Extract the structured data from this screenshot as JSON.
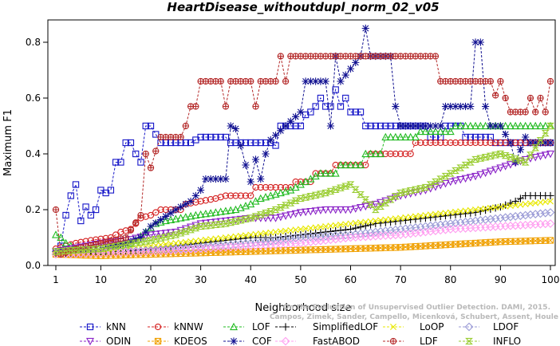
{
  "chart_data": {
    "type": "line",
    "title": "HeartDisease_withoutdupl_norm_02_v05",
    "xlabel": "Neighborhood size",
    "ylabel": "Maximum F1",
    "xlim": [
      1,
      100
    ],
    "ylim": [
      0,
      0.88
    ],
    "x_ticks": [
      1,
      10,
      20,
      30,
      40,
      50,
      60,
      70,
      80,
      90,
      100
    ],
    "y_ticks": [
      0.0,
      0.2,
      0.4,
      0.6,
      0.8
    ],
    "y_tick_labels": [
      "0.0",
      "0.2",
      "0.4",
      "0.6",
      "0.8"
    ],
    "legend_position": "bottom",
    "credit": "Campos, Zimek, Sander, Campello, Micenková, Schubert, Assent, Houle: On the Evaluation of Unsupervised Outlier Detection. DAMI, 2015.",
    "credit_lines": [
      "Campos, Zimek, Sander, Campello, Micenková, Schubert, Assent, Houle",
      "On the Evaluation of Unsupervised Outlier Detection. DAMI, 2015."
    ],
    "series": [
      {
        "name": "kNN",
        "color": "#1515c8",
        "marker": "square",
        "points": [
          [
            1,
            0.05
          ],
          [
            2,
            0.07
          ],
          [
            3,
            0.18
          ],
          [
            4,
            0.25
          ],
          [
            5,
            0.29
          ],
          [
            6,
            0.16
          ],
          [
            7,
            0.21
          ],
          [
            8,
            0.18
          ],
          [
            9,
            0.2
          ],
          [
            10,
            0.27
          ],
          [
            11,
            0.26
          ],
          [
            12,
            0.27
          ],
          [
            13,
            0.37
          ],
          [
            14,
            0.37
          ],
          [
            15,
            0.44
          ],
          [
            16,
            0.44
          ],
          [
            17,
            0.4
          ],
          [
            18,
            0.37
          ],
          [
            19,
            0.5
          ],
          [
            20,
            0.5
          ],
          [
            22,
            0.44
          ],
          [
            28,
            0.44
          ],
          [
            30,
            0.46
          ],
          [
            35,
            0.46
          ],
          [
            36,
            0.44
          ],
          [
            44,
            0.44
          ],
          [
            45,
            0.43
          ],
          [
            46,
            0.5
          ],
          [
            50,
            0.5
          ],
          [
            51,
            0.54
          ],
          [
            52,
            0.55
          ],
          [
            53,
            0.57
          ],
          [
            54,
            0.6
          ],
          [
            55,
            0.57
          ],
          [
            56,
            0.57
          ],
          [
            57,
            0.63
          ],
          [
            58,
            0.57
          ],
          [
            59,
            0.6
          ],
          [
            60,
            0.55
          ],
          [
            62,
            0.55
          ],
          [
            63,
            0.5
          ],
          [
            75,
            0.5
          ],
          [
            76,
            0.46
          ],
          [
            78,
            0.46
          ],
          [
            79,
            0.5
          ],
          [
            82,
            0.5
          ],
          [
            83,
            0.46
          ],
          [
            88,
            0.46
          ],
          [
            89,
            0.44
          ],
          [
            100,
            0.44
          ]
        ]
      },
      {
        "name": "kNNW",
        "color": "#d42020",
        "marker": "circle",
        "points": [
          [
            1,
            0.06
          ],
          [
            3,
            0.07
          ],
          [
            5,
            0.08
          ],
          [
            8,
            0.09
          ],
          [
            12,
            0.1
          ],
          [
            14,
            0.12
          ],
          [
            16,
            0.13
          ],
          [
            18,
            0.17
          ],
          [
            20,
            0.18
          ],
          [
            22,
            0.2
          ],
          [
            26,
            0.2
          ],
          [
            27,
            0.22
          ],
          [
            30,
            0.23
          ],
          [
            33,
            0.24
          ],
          [
            35,
            0.25
          ],
          [
            40,
            0.25
          ],
          [
            41,
            0.28
          ],
          [
            48,
            0.28
          ],
          [
            49,
            0.3
          ],
          [
            52,
            0.3
          ],
          [
            53,
            0.33
          ],
          [
            56,
            0.33
          ],
          [
            57,
            0.36
          ],
          [
            63,
            0.36
          ],
          [
            64,
            0.4
          ],
          [
            72,
            0.4
          ],
          [
            73,
            0.44
          ],
          [
            100,
            0.44
          ]
        ]
      },
      {
        "name": "LOF",
        "color": "#22bb22",
        "marker": "triangle",
        "points": [
          [
            1,
            0.11
          ],
          [
            2,
            0.1
          ],
          [
            3,
            0.08
          ],
          [
            5,
            0.06
          ],
          [
            8,
            0.05
          ],
          [
            10,
            0.05
          ],
          [
            13,
            0.06
          ],
          [
            15,
            0.07
          ],
          [
            17,
            0.09
          ],
          [
            19,
            0.12
          ],
          [
            21,
            0.15
          ],
          [
            23,
            0.16
          ],
          [
            26,
            0.17
          ],
          [
            29,
            0.18
          ],
          [
            33,
            0.19
          ],
          [
            37,
            0.2
          ],
          [
            40,
            0.22
          ],
          [
            42,
            0.24
          ],
          [
            44,
            0.25
          ],
          [
            48,
            0.27
          ],
          [
            50,
            0.29
          ],
          [
            52,
            0.31
          ],
          [
            54,
            0.33
          ],
          [
            57,
            0.33
          ],
          [
            58,
            0.36
          ],
          [
            62,
            0.36
          ],
          [
            63,
            0.4
          ],
          [
            66,
            0.4
          ],
          [
            67,
            0.46
          ],
          [
            73,
            0.46
          ],
          [
            74,
            0.48
          ],
          [
            80,
            0.48
          ],
          [
            81,
            0.5
          ],
          [
            100,
            0.5
          ]
        ]
      },
      {
        "name": "SimplifiedLOF",
        "color": "#000000",
        "marker": "plus",
        "points": [
          [
            1,
            0.04
          ],
          [
            5,
            0.04
          ],
          [
            10,
            0.045
          ],
          [
            15,
            0.05
          ],
          [
            20,
            0.06
          ],
          [
            25,
            0.07
          ],
          [
            30,
            0.08
          ],
          [
            35,
            0.09
          ],
          [
            40,
            0.1
          ],
          [
            45,
            0.1
          ],
          [
            50,
            0.11
          ],
          [
            55,
            0.12
          ],
          [
            60,
            0.13
          ],
          [
            65,
            0.15
          ],
          [
            70,
            0.16
          ],
          [
            75,
            0.17
          ],
          [
            80,
            0.18
          ],
          [
            85,
            0.19
          ],
          [
            90,
            0.21
          ],
          [
            93,
            0.23
          ],
          [
            95,
            0.25
          ],
          [
            100,
            0.25
          ]
        ]
      },
      {
        "name": "LoOP",
        "color": "#e8e800",
        "marker": "x",
        "points": [
          [
            1,
            0.04
          ],
          [
            10,
            0.05
          ],
          [
            20,
            0.07
          ],
          [
            30,
            0.09
          ],
          [
            40,
            0.11
          ],
          [
            50,
            0.13
          ],
          [
            60,
            0.15
          ],
          [
            70,
            0.17
          ],
          [
            80,
            0.19
          ],
          [
            90,
            0.21
          ],
          [
            100,
            0.23
          ]
        ]
      },
      {
        "name": "LDOF",
        "color": "#9a9ad6",
        "marker": "diamond",
        "points": [
          [
            1,
            0.04
          ],
          [
            10,
            0.045
          ],
          [
            20,
            0.055
          ],
          [
            30,
            0.065
          ],
          [
            40,
            0.08
          ],
          [
            50,
            0.1
          ],
          [
            60,
            0.11
          ],
          [
            70,
            0.13
          ],
          [
            80,
            0.15
          ],
          [
            90,
            0.17
          ],
          [
            100,
            0.19
          ]
        ]
      },
      {
        "name": "ODIN",
        "color": "#8b24c8",
        "marker": "triangle-down",
        "points": [
          [
            1,
            0.05
          ],
          [
            10,
            0.08
          ],
          [
            15,
            0.09
          ],
          [
            20,
            0.11
          ],
          [
            25,
            0.12
          ],
          [
            30,
            0.15
          ],
          [
            35,
            0.16
          ],
          [
            40,
            0.17
          ],
          [
            45,
            0.17
          ],
          [
            50,
            0.19
          ],
          [
            55,
            0.2
          ],
          [
            60,
            0.2
          ],
          [
            65,
            0.22
          ],
          [
            70,
            0.25
          ],
          [
            75,
            0.27
          ],
          [
            80,
            0.3
          ],
          [
            85,
            0.32
          ],
          [
            90,
            0.35
          ],
          [
            95,
            0.38
          ],
          [
            100,
            0.4
          ]
        ]
      },
      {
        "name": "KDEOS",
        "color": "#f0a000",
        "marker": "square-x",
        "points": [
          [
            1,
            0.04
          ],
          [
            10,
            0.035
          ],
          [
            20,
            0.04
          ],
          [
            30,
            0.045
          ],
          [
            40,
            0.05
          ],
          [
            50,
            0.055
          ],
          [
            60,
            0.06
          ],
          [
            70,
            0.065
          ],
          [
            80,
            0.075
          ],
          [
            90,
            0.085
          ],
          [
            100,
            0.09
          ]
        ]
      },
      {
        "name": "COF",
        "color": "#101090",
        "marker": "star",
        "points": [
          [
            1,
            0.05
          ],
          [
            10,
            0.06
          ],
          [
            15,
            0.08
          ],
          [
            18,
            0.1
          ],
          [
            20,
            0.14
          ],
          [
            25,
            0.2
          ],
          [
            28,
            0.23
          ],
          [
            30,
            0.27
          ],
          [
            31,
            0.31
          ],
          [
            35,
            0.31
          ],
          [
            36,
            0.5
          ],
          [
            37,
            0.49
          ],
          [
            38,
            0.43
          ],
          [
            39,
            0.36
          ],
          [
            40,
            0.3
          ],
          [
            41,
            0.38
          ],
          [
            42,
            0.31
          ],
          [
            43,
            0.4
          ],
          [
            44,
            0.45
          ],
          [
            47,
            0.5
          ],
          [
            50,
            0.55
          ],
          [
            51,
            0.66
          ],
          [
            55,
            0.66
          ],
          [
            56,
            0.5
          ],
          [
            57,
            0.75
          ],
          [
            58,
            0.66
          ],
          [
            62,
            0.75
          ],
          [
            63,
            0.85
          ],
          [
            64,
            0.75
          ],
          [
            68,
            0.75
          ],
          [
            69,
            0.57
          ],
          [
            70,
            0.5
          ],
          [
            78,
            0.5
          ],
          [
            79,
            0.57
          ],
          [
            84,
            0.57
          ],
          [
            85,
            0.8
          ],
          [
            86,
            0.8
          ],
          [
            87,
            0.57
          ],
          [
            88,
            0.5
          ],
          [
            90,
            0.5
          ],
          [
            92,
            0.44
          ],
          [
            93,
            0.37
          ],
          [
            95,
            0.46
          ],
          [
            96,
            0.44
          ],
          [
            100,
            0.44
          ]
        ]
      },
      {
        "name": "FastABOD",
        "color": "#ff9cf0",
        "marker": "diamond",
        "points": [
          [
            1,
            0.04
          ],
          [
            10,
            0.045
          ],
          [
            20,
            0.05
          ],
          [
            30,
            0.06
          ],
          [
            40,
            0.07
          ],
          [
            50,
            0.08
          ],
          [
            60,
            0.1
          ],
          [
            70,
            0.11
          ],
          [
            80,
            0.13
          ],
          [
            90,
            0.14
          ],
          [
            100,
            0.15
          ]
        ]
      },
      {
        "name": "LDF",
        "color": "#b42828",
        "marker": "circle-plus",
        "points": [
          [
            1,
            0.2
          ],
          [
            2,
            0.04
          ],
          [
            5,
            0.06
          ],
          [
            10,
            0.08
          ],
          [
            15,
            0.1
          ],
          [
            18,
            0.18
          ],
          [
            19,
            0.4
          ],
          [
            20,
            0.35
          ],
          [
            21,
            0.41
          ],
          [
            22,
            0.46
          ],
          [
            26,
            0.46
          ],
          [
            27,
            0.5
          ],
          [
            28,
            0.57
          ],
          [
            29,
            0.57
          ],
          [
            30,
            0.66
          ],
          [
            34,
            0.66
          ],
          [
            35,
            0.57
          ],
          [
            36,
            0.66
          ],
          [
            40,
            0.66
          ],
          [
            41,
            0.57
          ],
          [
            42,
            0.66
          ],
          [
            45,
            0.66
          ],
          [
            46,
            0.75
          ],
          [
            47,
            0.66
          ],
          [
            48,
            0.75
          ],
          [
            77,
            0.75
          ],
          [
            78,
            0.66
          ],
          [
            88,
            0.66
          ],
          [
            89,
            0.61
          ],
          [
            90,
            0.66
          ],
          [
            91,
            0.6
          ],
          [
            92,
            0.55
          ],
          [
            95,
            0.55
          ],
          [
            96,
            0.6
          ],
          [
            97,
            0.55
          ],
          [
            98,
            0.6
          ],
          [
            99,
            0.55
          ],
          [
            100,
            0.66
          ]
        ]
      },
      {
        "name": "INFLO",
        "color": "#9acd32",
        "marker": "hourglass",
        "points": [
          [
            1,
            0.05
          ],
          [
            10,
            0.06
          ],
          [
            20,
            0.09
          ],
          [
            25,
            0.11
          ],
          [
            30,
            0.14
          ],
          [
            35,
            0.15
          ],
          [
            40,
            0.17
          ],
          [
            45,
            0.2
          ],
          [
            50,
            0.24
          ],
          [
            55,
            0.26
          ],
          [
            60,
            0.29
          ],
          [
            65,
            0.2
          ],
          [
            70,
            0.26
          ],
          [
            75,
            0.28
          ],
          [
            80,
            0.33
          ],
          [
            85,
            0.38
          ],
          [
            90,
            0.4
          ],
          [
            95,
            0.37
          ],
          [
            100,
            0.5
          ]
        ]
      }
    ]
  }
}
